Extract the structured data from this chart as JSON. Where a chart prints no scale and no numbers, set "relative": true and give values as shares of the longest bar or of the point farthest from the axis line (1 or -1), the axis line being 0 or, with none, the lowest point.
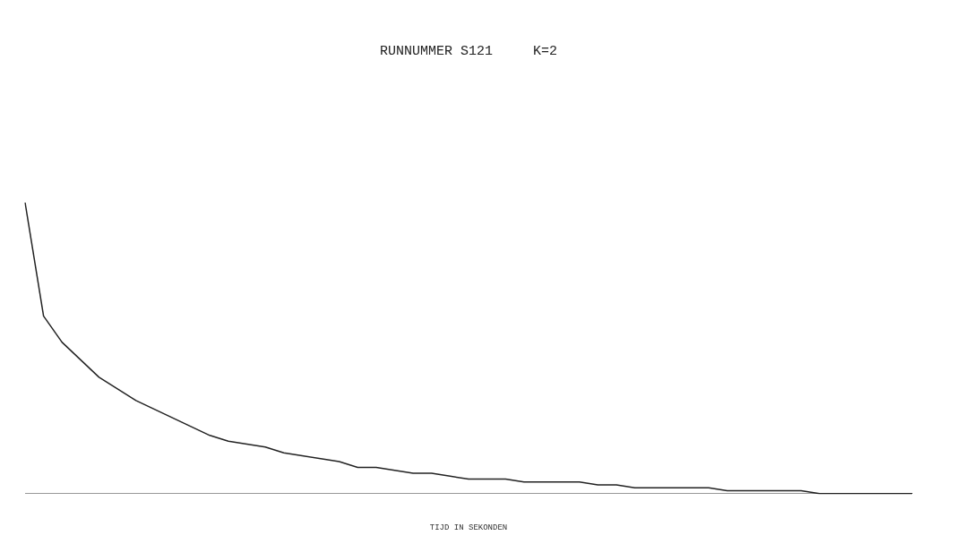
{
  "chart_data": {
    "type": "line",
    "title": "RUNNUMMER S121     K=2",
    "xlabel": "TIJD IN SEKONDEN",
    "relative": true,
    "grid": false,
    "legend": false,
    "marker": "none",
    "line_style": "solid",
    "categories": [
      null,
      null,
      null,
      null,
      null,
      null,
      null,
      null,
      null,
      null,
      null,
      null,
      null,
      null,
      null,
      null,
      null,
      null,
      null,
      null,
      null,
      null,
      null,
      null,
      null,
      null,
      null,
      null,
      null,
      null,
      null,
      null,
      null,
      null,
      null,
      null,
      null,
      null,
      null,
      null,
      null,
      null,
      null,
      null,
      null,
      null,
      null,
      null,
      null
    ],
    "series": [
      {
        "color": "#222222",
        "values": [
          1.0,
          0.61,
          0.52,
          0.46,
          0.4,
          0.36,
          0.32,
          0.29,
          0.26,
          0.23,
          0.2,
          0.18,
          0.17,
          0.16,
          0.14,
          0.13,
          0.12,
          0.11,
          0.09,
          0.09,
          0.08,
          0.07,
          0.07,
          0.06,
          0.05,
          0.05,
          0.05,
          0.04,
          0.04,
          0.04,
          0.04,
          0.03,
          0.03,
          0.02,
          0.02,
          0.02,
          0.02,
          0.02,
          0.01,
          0.01,
          0.01,
          0.01,
          0.01,
          0,
          0,
          0,
          0,
          0,
          0
        ]
      }
    ]
  }
}
